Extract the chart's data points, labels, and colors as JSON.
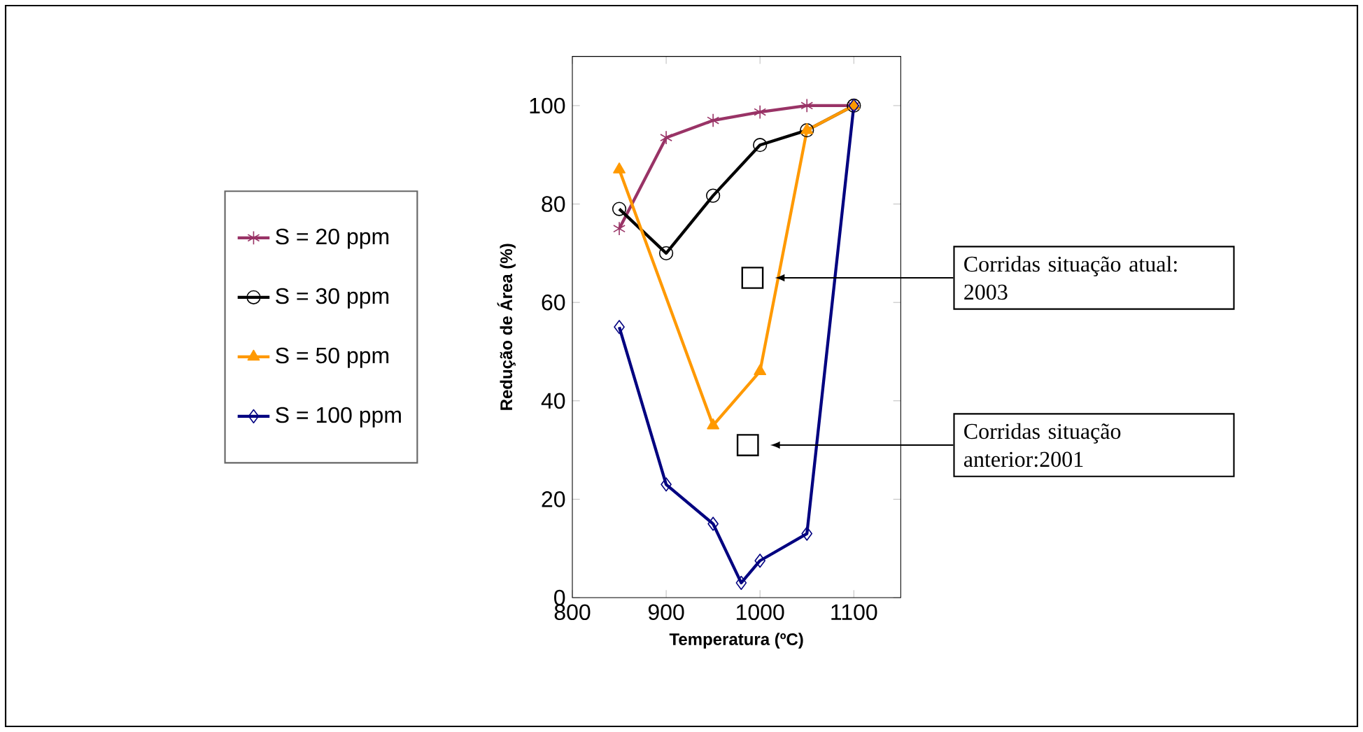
{
  "chart_data": {
    "type": "line",
    "xlabel": "Temperatura (ºC)",
    "ylabel": "Redução de Área (%)",
    "xlim": [
      800,
      1150
    ],
    "xticks": [
      800,
      900,
      1000,
      1100
    ],
    "ylim": [
      0,
      110
    ],
    "yticks": [
      0,
      20,
      40,
      60,
      80,
      100
    ],
    "legend": "left",
    "grid": false,
    "series": [
      {
        "name": "S = 20 ppm",
        "color": "#993366",
        "marker": "cross",
        "x": [
          850,
          900,
          950,
          1000,
          1050,
          1100
        ],
        "values": [
          75,
          93.5,
          97,
          98.7,
          100,
          100
        ]
      },
      {
        "name": "S = 30 ppm",
        "color": "#000000",
        "marker": "circle",
        "x": [
          850,
          900,
          950,
          1000,
          1050,
          1100
        ],
        "values": [
          79,
          70,
          81.7,
          92,
          95,
          100
        ]
      },
      {
        "name": "S = 50 ppm",
        "color": "#ff9900",
        "marker": "triangle",
        "x": [
          850,
          950,
          1000,
          1050,
          1100
        ],
        "values": [
          87,
          35,
          46,
          95,
          100
        ]
      },
      {
        "name": "S = 100 ppm",
        "color": "#000080",
        "marker": "diamond",
        "x": [
          850,
          900,
          950,
          980,
          1000,
          1050,
          1100
        ],
        "values": [
          55,
          23,
          15,
          3,
          7.5,
          13,
          100
        ]
      },
      {
        "type": "scatter",
        "color": "#000000",
        "marker": "square",
        "x": [
          992,
          987
        ],
        "values": [
          65,
          31
        ]
      }
    ],
    "annotations": [
      "Corridas situação atual: 2003",
      "Corridas situação anterior:2001"
    ]
  }
}
